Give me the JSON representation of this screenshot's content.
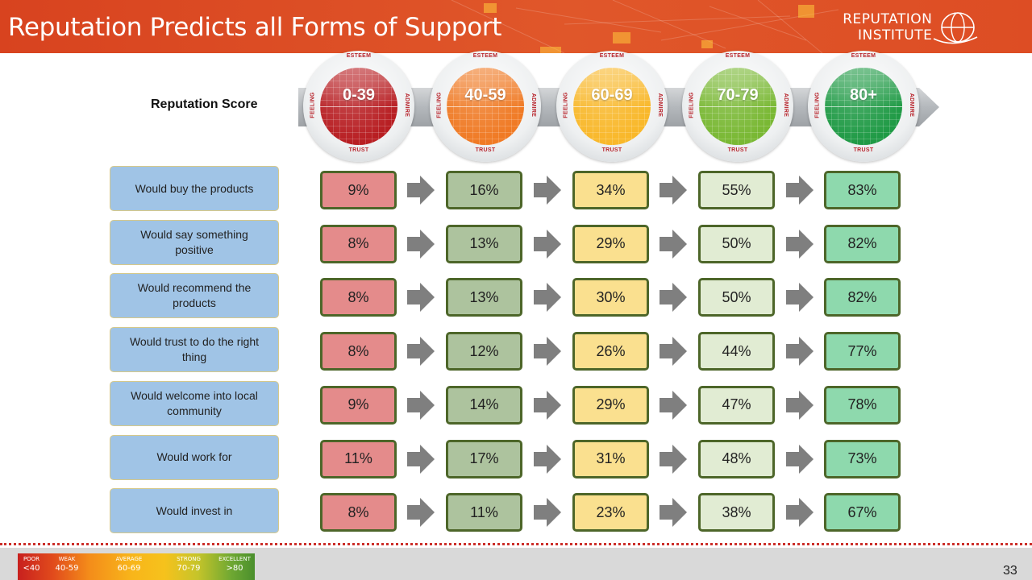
{
  "header": {
    "title": "Reputation Predicts all Forms of Support",
    "logo_line1": "Reputation",
    "logo_line2": "Institute"
  },
  "scale": {
    "label": "Reputation Score",
    "ring_words": {
      "top": "ESTEEM",
      "right": "ADMIRE",
      "bottom": "TRUST",
      "left": "FEELING"
    },
    "dials": [
      {
        "score": "0-39",
        "color": "#b81e22"
      },
      {
        "score": "40-59",
        "color": "#f07a24"
      },
      {
        "score": "60-69",
        "color": "#f9b82a"
      },
      {
        "score": "70-79",
        "color": "#79b833"
      },
      {
        "score": "80+",
        "color": "#1f9a45"
      }
    ]
  },
  "rows": [
    {
      "label": "Would buy the products",
      "values": [
        "9%",
        "16%",
        "34%",
        "55%",
        "83%"
      ]
    },
    {
      "label": "Would say something positive",
      "values": [
        "8%",
        "13%",
        "29%",
        "50%",
        "82%"
      ]
    },
    {
      "label": "Would recommend the products",
      "values": [
        "8%",
        "13%",
        "30%",
        "50%",
        "82%"
      ]
    },
    {
      "label": "Would trust to do the right thing",
      "values": [
        "8%",
        "12%",
        "26%",
        "44%",
        "77%"
      ]
    },
    {
      "label": "Would welcome into local community",
      "values": [
        "9%",
        "14%",
        "29%",
        "47%",
        "78%"
      ]
    },
    {
      "label": "Would work for",
      "values": [
        "11%",
        "17%",
        "31%",
        "48%",
        "73%"
      ]
    },
    {
      "label": "Would invest in",
      "values": [
        "8%",
        "11%",
        "23%",
        "38%",
        "67%"
      ]
    }
  ],
  "cell_colors": [
    "#e48b8b",
    "#adc39e",
    "#fae08f",
    "#e1ecd3",
    "#8ed9ad"
  ],
  "legend": [
    {
      "name": "POOR",
      "range": "<40"
    },
    {
      "name": "WEAK",
      "range": "40-59"
    },
    {
      "name": "AVERAGE",
      "range": "60-69"
    },
    {
      "name": "STRONG",
      "range": "70-79"
    },
    {
      "name": "EXCELLENT",
      "range": ">80"
    }
  ],
  "page_number": "33"
}
